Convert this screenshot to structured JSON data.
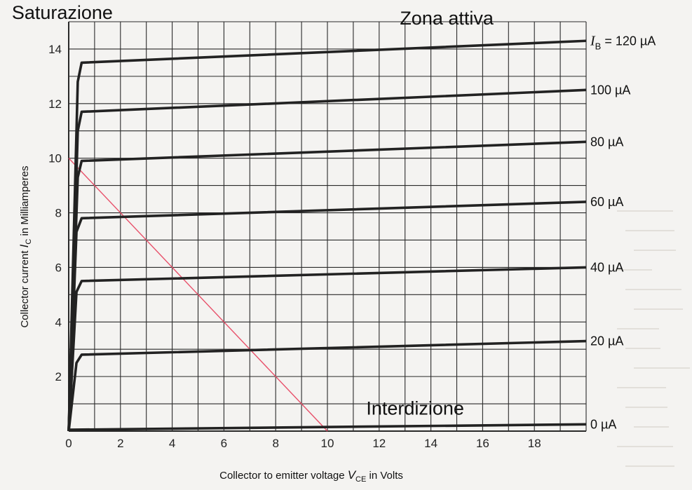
{
  "chart_data": {
    "type": "line",
    "xlabel": "Collector to emitter voltage V_CE in Volts",
    "xlabel_parts": [
      "Collector to emitter voltage ",
      "V",
      "CE",
      " in Volts"
    ],
    "ylabel": "Collector current I_C in Milliamperes",
    "ylabel_parts": [
      "Collector current ",
      "I",
      "C",
      " in Milliamperes"
    ],
    "xlim": [
      0,
      20
    ],
    "ylim": [
      0,
      15
    ],
    "x_ticks": [
      0,
      2,
      4,
      6,
      8,
      10,
      12,
      14,
      16,
      18
    ],
    "y_ticks": [
      2,
      4,
      6,
      8,
      10,
      12,
      14
    ],
    "grid": true,
    "series": [
      {
        "name": "I_B = 120 µA",
        "label_parts": [
          "I",
          "B",
          " = 120 µA"
        ],
        "x": [
          0,
          0.35,
          0.5,
          20
        ],
        "y": [
          0,
          12.8,
          13.5,
          14.3
        ]
      },
      {
        "name": "100 µA",
        "label": "100 µA",
        "x": [
          0,
          0.35,
          0.5,
          20
        ],
        "y": [
          0,
          11.0,
          11.7,
          12.5
        ]
      },
      {
        "name": "80 µA",
        "label": "80 µA",
        "x": [
          0,
          0.35,
          0.5,
          20
        ],
        "y": [
          0,
          9.3,
          9.9,
          10.6
        ]
      },
      {
        "name": "60 µA",
        "label": "60 µA",
        "x": [
          0,
          0.3,
          0.5,
          20
        ],
        "y": [
          0,
          7.3,
          7.8,
          8.4
        ]
      },
      {
        "name": "40 µA",
        "label": "40 µA",
        "x": [
          0,
          0.3,
          0.5,
          20
        ],
        "y": [
          0,
          5.1,
          5.5,
          6.0
        ]
      },
      {
        "name": "20 µA",
        "label": "20 µA",
        "x": [
          0,
          0.3,
          0.5,
          20
        ],
        "y": [
          0,
          2.5,
          2.8,
          3.3
        ]
      },
      {
        "name": "0 µA",
        "label": "0 µA",
        "x": [
          0,
          20
        ],
        "y": [
          0.05,
          0.25
        ]
      }
    ],
    "load_line": {
      "x": [
        0,
        10
      ],
      "y": [
        10,
        0
      ],
      "color": "#e8506a"
    },
    "annotations": [
      {
        "text": "Saturazione",
        "x": -2.2,
        "y": 15.1
      },
      {
        "text": "Zona attiva",
        "x": 12.8,
        "y": 14.9
      },
      {
        "text": "Interdizione",
        "x": 11.5,
        "y": 0.6
      }
    ],
    "colors": {
      "curve": "#222222",
      "grid": "#2a2a2a",
      "background": "#f4f3f1"
    }
  }
}
